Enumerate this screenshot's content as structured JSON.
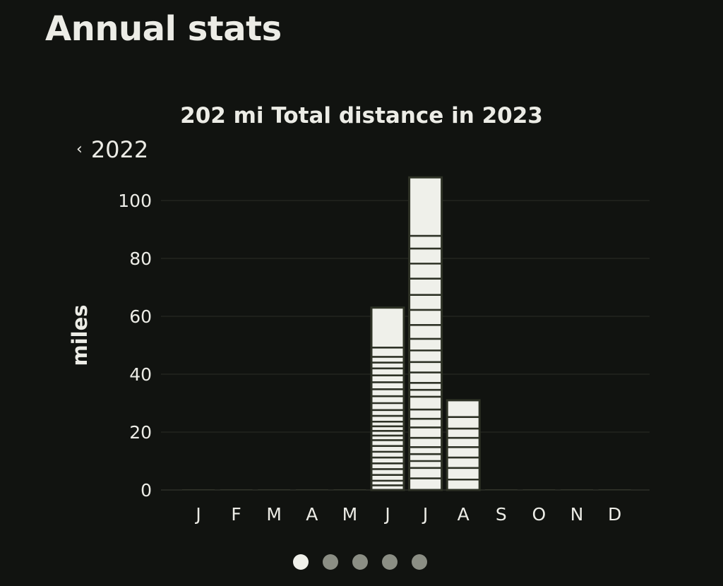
{
  "page": {
    "title": "Annual stats"
  },
  "nav": {
    "prev_year_label": "2022",
    "chevron_icon": "chevron-left-icon"
  },
  "chart_data": {
    "type": "bar",
    "title": "202 mi Total distance in 2023",
    "xlabel": "",
    "ylabel": "miles",
    "categories": [
      "J",
      "F",
      "M",
      "A",
      "M",
      "J",
      "J",
      "A",
      "S",
      "O",
      "N",
      "D"
    ],
    "values": [
      0,
      0,
      0,
      0,
      0,
      63,
      108,
      31,
      0,
      0,
      0,
      0
    ],
    "segments": [
      [],
      [],
      [],
      [],
      [],
      [
        1.6,
        1.6,
        2,
        2,
        2,
        2,
        2,
        2,
        2,
        1.6,
        1.6,
        1.6,
        1.6,
        2,
        2,
        2.4,
        2.4,
        2.4,
        2.4,
        2.4,
        2.4,
        2,
        2,
        3.2,
        3.2
      ],
      [
        4,
        3.6,
        2.4,
        2.4,
        2.4,
        3.2,
        3.6,
        3,
        3.2,
        4.4,
        2.4,
        2.4,
        3.6,
        3.6,
        4,
        4,
        4.8,
        5.2,
        5.2,
        5.6,
        5.2,
        5.2,
        4.4,
        5.2
      ],
      [
        3.6,
        4,
        3.6,
        3.6,
        3.2,
        3.2,
        4,
        3.6
      ],
      [],
      [],
      [],
      []
    ],
    "ylim": [
      0,
      110
    ],
    "yticks": [
      0,
      20,
      40,
      60,
      80,
      100
    ],
    "grid": true,
    "legend": "none",
    "colors": {
      "bar": "#eff0ea",
      "bar_stroke": "#2e3226",
      "grid": "#2b2e26",
      "axis": "#3a3d34",
      "background": "#111310"
    }
  },
  "pagination": {
    "count": 5,
    "active_index": 0
  }
}
